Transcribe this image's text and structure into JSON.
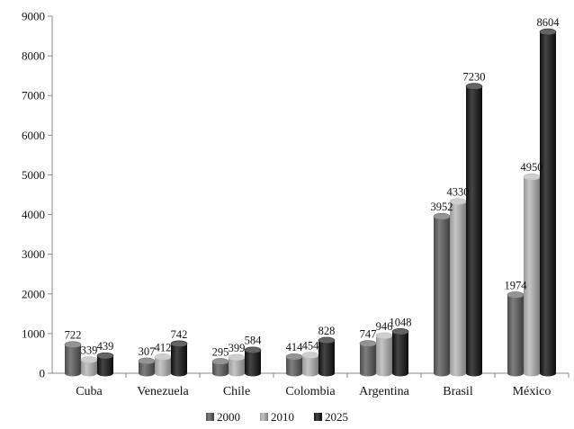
{
  "chart_data": {
    "type": "bar",
    "categories": [
      "Cuba",
      "Venezuela",
      "Chile",
      "Colombia",
      "Argentina",
      "Brasil",
      "México"
    ],
    "series": [
      {
        "name": "2000",
        "values": [
          722,
          307,
          295,
          414,
          747,
          3952,
          1974
        ],
        "color": "#5a5a5a"
      },
      {
        "name": "2010",
        "values": [
          339,
          412,
          399,
          454,
          946,
          4330,
          4950
        ],
        "color": "#b4b4b4"
      },
      {
        "name": "2025",
        "values": [
          439,
          742,
          584,
          828,
          1048,
          7230,
          8604
        ],
        "color": "#111111"
      }
    ],
    "ylim": [
      0,
      9000
    ],
    "yticks": [
      0,
      1000,
      2000,
      3000,
      4000,
      5000,
      6000,
      7000,
      8000,
      9000
    ],
    "grid": false,
    "legend_position": "bottom",
    "style": "3d-cylinder"
  }
}
